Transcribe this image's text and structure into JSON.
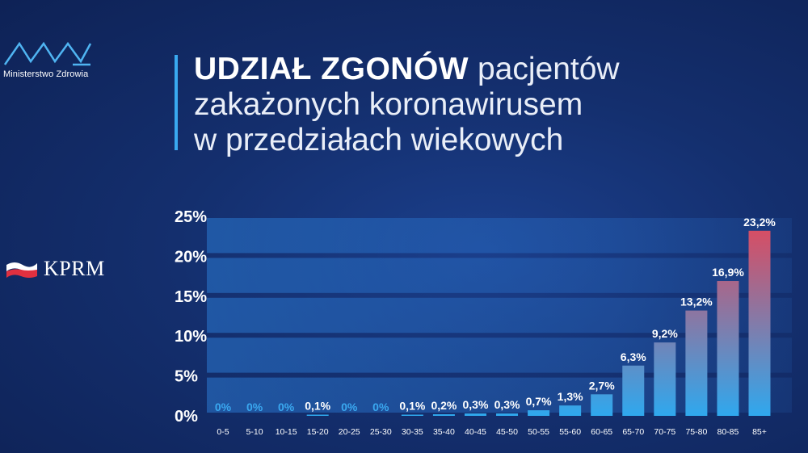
{
  "logo": {
    "name": "Ministerstwo Zdrowia",
    "icon": "ministry-of-health-logo-icon"
  },
  "kprm": {
    "label": "KPRM",
    "icon": "polish-flag-icon"
  },
  "title": {
    "bold": "UDZIAŁ ZGONÓW",
    "line1_rest": "pacjentów",
    "line2": "zakażonych koronawirusem",
    "line3": "w przedziałach wiekowych"
  },
  "colors": {
    "accent": "#39a9f0",
    "bar_low": "#2fa8ee",
    "bar_high": "#e3475a",
    "zero_label": "#3aa8f0"
  },
  "chart_data": {
    "type": "bar",
    "categories": [
      "0-5",
      "5-10",
      "10-15",
      "15-20",
      "20-25",
      "25-30",
      "30-35",
      "35-40",
      "40-45",
      "45-50",
      "50-55",
      "55-60",
      "60-65",
      "65-70",
      "70-75",
      "75-80",
      "80-85",
      "85+"
    ],
    "values": [
      0,
      0,
      0,
      0.1,
      0,
      0,
      0.1,
      0.2,
      0.3,
      0.3,
      0.7,
      1.3,
      2.7,
      6.3,
      9.2,
      13.2,
      16.9,
      23.2
    ],
    "labels": [
      "0%",
      "0%",
      "0%",
      "0,1%",
      "0%",
      "0%",
      "0,1%",
      "0,2%",
      "0,3%",
      "0,3%",
      "0,7%",
      "1,3%",
      "2,7%",
      "6,3%",
      "9,2%",
      "13,2%",
      "16,9%",
      "23,2%"
    ],
    "yticks": [
      "0%",
      "5%",
      "10%",
      "15%",
      "20%",
      "25%"
    ],
    "ytick_values": [
      0,
      5,
      10,
      15,
      20,
      25
    ],
    "ylim": [
      0,
      25
    ],
    "grid": true,
    "legend": "none"
  }
}
